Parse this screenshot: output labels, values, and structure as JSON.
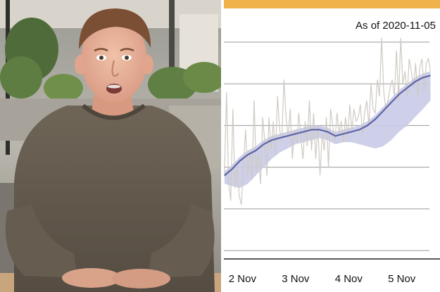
{
  "photo": {
    "subject": "person-in-grey-tshirt"
  },
  "chart_header": {
    "as_of_label": "As of 2020-11-05",
    "accent_color": "#f0b24a"
  },
  "chart_data": {
    "type": "line",
    "title": "",
    "xlabel": "",
    "ylabel": "",
    "x_ticks": [
      "2 Nov",
      "3 Nov",
      "4 Nov",
      "5 Nov"
    ],
    "x_tick_positions": [
      0,
      1,
      2,
      3
    ],
    "xlim": [
      -0.35,
      3.6
    ],
    "ylim": [
      0,
      5.4
    ],
    "grid": true,
    "gridlines_y": [
      0.2,
      1.2,
      2.2,
      3.2,
      4.2,
      5.2
    ],
    "colors": {
      "raw": "#cfcac3",
      "smoothed": "#5e64a8",
      "band": "#c8cbe6",
      "grid": "#999999"
    },
    "series": [
      {
        "x": [
          -0.34,
          -0.3,
          -0.26,
          -0.22,
          -0.18,
          -0.14,
          -0.1,
          -0.06,
          -0.02,
          0.02,
          0.06,
          0.1,
          0.14,
          0.18,
          0.22,
          0.26,
          0.3,
          0.34,
          0.38,
          0.42,
          0.46,
          0.5,
          0.54,
          0.58,
          0.62,
          0.66,
          0.7,
          0.74,
          0.78,
          0.82,
          0.86,
          0.9,
          0.94,
          0.98,
          1.02,
          1.06,
          1.1,
          1.14,
          1.18,
          1.22,
          1.26,
          1.3,
          1.34,
          1.38,
          1.42,
          1.46,
          1.5,
          1.54,
          1.58,
          1.62,
          1.66,
          1.7,
          1.74,
          1.78,
          1.82,
          1.86,
          1.9,
          1.94,
          1.98,
          2.02,
          2.06,
          2.1,
          2.14,
          2.18,
          2.22,
          2.26,
          2.3,
          2.34,
          2.38,
          2.42,
          2.46,
          2.5,
          2.54,
          2.58,
          2.62,
          2.66,
          2.7,
          2.74,
          2.78,
          2.82,
          2.86,
          2.9,
          2.94,
          2.98,
          3.02,
          3.06,
          3.1,
          3.14,
          3.18,
          3.22,
          3.26,
          3.3,
          3.34,
          3.38,
          3.42,
          3.46,
          3.5,
          3.54
        ],
        "y": [
          2.0,
          4.0,
          1.8,
          1.4,
          3.6,
          1.7,
          2.2,
          1.5,
          1.3,
          2.3,
          3.1,
          2.0,
          2.6,
          1.9,
          3.8,
          2.1,
          2.5,
          1.8,
          3.4,
          2.8,
          2.0,
          3.4,
          2.6,
          3.3,
          2.5,
          3.9,
          3.1,
          2.8,
          4.3,
          3.4,
          2.9,
          3.6,
          2.4,
          3.1,
          2.8,
          3.5,
          2.9,
          2.4,
          3.3,
          2.7,
          3.8,
          2.6,
          3.5,
          2.4,
          3.2,
          2.0,
          3.0,
          2.6,
          3.4,
          2.2,
          3.6,
          3.2,
          2.8,
          3.5,
          3.0,
          3.3,
          2.8,
          3.4,
          2.9,
          3.7,
          3.1,
          3.6,
          3.3,
          3.4,
          3.7,
          3.0,
          3.5,
          3.8,
          3.2,
          4.2,
          3.6,
          3.5,
          4.3,
          3.9,
          5.3,
          4.0,
          3.6,
          3.8,
          4.1,
          4.3,
          3.9,
          5.0,
          3.8,
          5.3,
          4.2,
          4.5,
          3.9,
          4.8,
          4.5,
          4.1,
          4.7,
          3.9,
          4.6,
          4.8,
          4.0,
          4.7,
          4.8,
          4.5
        ]
      },
      {
        "name": "",
        "x": [
          -0.34,
          -0.2,
          -0.05,
          0.1,
          0.25,
          0.4,
          0.55,
          0.7,
          0.85,
          1.0,
          1.15,
          1.3,
          1.45,
          1.6,
          1.75,
          1.9,
          2.05,
          2.2,
          2.35,
          2.5,
          2.65,
          2.8,
          2.95,
          3.1,
          3.25,
          3.4,
          3.54
        ],
        "y": [
          2.0,
          2.15,
          2.35,
          2.5,
          2.6,
          2.75,
          2.85,
          2.9,
          2.95,
          3.0,
          3.05,
          3.1,
          3.1,
          3.05,
          2.95,
          3.0,
          3.05,
          3.1,
          3.2,
          3.35,
          3.55,
          3.75,
          3.95,
          4.1,
          4.25,
          4.35,
          4.4
        ],
        "band_upper": [
          2.1,
          2.25,
          2.45,
          2.6,
          2.7,
          2.85,
          2.95,
          3.0,
          3.05,
          3.1,
          3.15,
          3.2,
          3.2,
          3.15,
          3.05,
          3.1,
          3.15,
          3.2,
          3.3,
          3.45,
          3.65,
          3.85,
          4.05,
          4.2,
          4.35,
          4.45,
          4.5
        ],
        "band_lower": [
          1.8,
          1.75,
          1.7,
          1.8,
          2.0,
          2.2,
          2.4,
          2.55,
          2.65,
          2.75,
          2.8,
          2.85,
          2.9,
          2.85,
          2.75,
          2.8,
          2.8,
          2.75,
          2.7,
          2.65,
          2.7,
          2.85,
          3.05,
          3.2,
          3.4,
          3.6,
          3.8
        ]
      }
    ]
  }
}
